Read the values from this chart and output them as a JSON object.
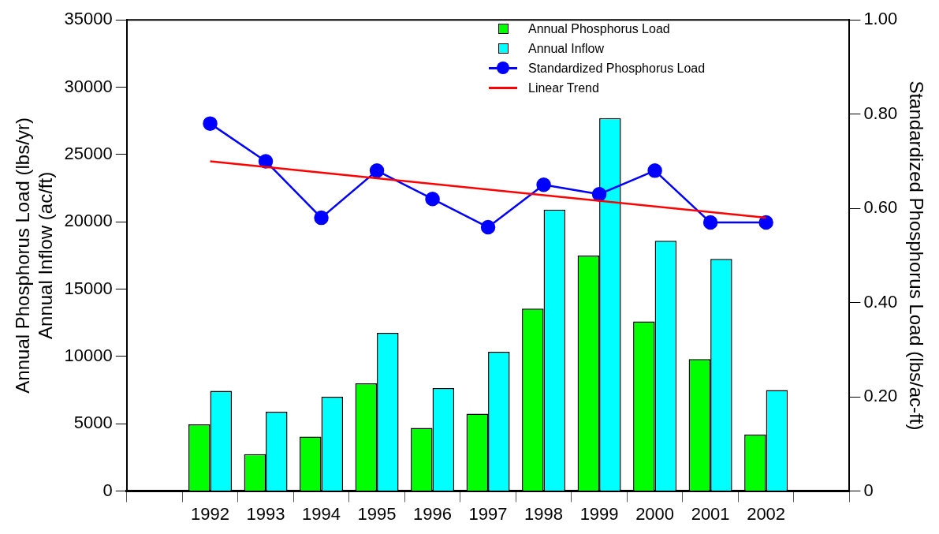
{
  "chart_data": {
    "type": "bar",
    "categories": [
      null,
      "1992",
      "1993",
      "1994",
      "1995",
      "1996",
      "1997",
      "1998",
      "1999",
      "2000",
      "2001",
      "2002",
      null
    ],
    "series": [
      {
        "name": "Annual Phosphorus Load",
        "color": "#00ff00",
        "values": [
          null,
          4950,
          2750,
          4050,
          8000,
          4700,
          5750,
          13550,
          17500,
          12600,
          9800,
          4200,
          null
        ]
      },
      {
        "name": "Annual Inflow",
        "color": "#00ffff",
        "values": [
          null,
          7450,
          5900,
          7000,
          11750,
          7650,
          10350,
          20900,
          27700,
          18600,
          17250,
          7500,
          null
        ]
      },
      {
        "name": "Standardized Phosphorus Load",
        "type": "line",
        "axis": "y2",
        "color": "#0000ff",
        "marker": "circle",
        "values": [
          null,
          0.78,
          0.7,
          0.58,
          0.68,
          0.62,
          0.56,
          0.65,
          0.63,
          0.68,
          0.57,
          0.57,
          null
        ]
      },
      {
        "name": "Linear Trend",
        "type": "line",
        "axis": "y2",
        "color": "#ff0000",
        "marker": "none",
        "values": [
          null,
          0.7,
          null,
          null,
          null,
          null,
          null,
          null,
          null,
          null,
          null,
          0.58,
          null
        ]
      }
    ],
    "ylabel": "Annual Phosphorus Load (lbs/yr)\nAnnual Inflow (ac/ft)",
    "y2label": "Standardized Phosphorus Load (lbs/ac-ft)",
    "ylim": [
      0,
      35000
    ],
    "yticks": [
      0,
      5000,
      10000,
      15000,
      20000,
      25000,
      30000,
      35000
    ],
    "y2lim": [
      0,
      1
    ],
    "y2ticks": [
      0,
      {
        "value": 0.2,
        "label": "0.20"
      },
      {
        "value": 0.4,
        "label": "0.40"
      },
      {
        "value": 0.6,
        "label": "0.60"
      },
      {
        "value": 0.8,
        "label": "0.80"
      },
      {
        "value": 1,
        "label": "1.00"
      }
    ],
    "legend": "top"
  }
}
